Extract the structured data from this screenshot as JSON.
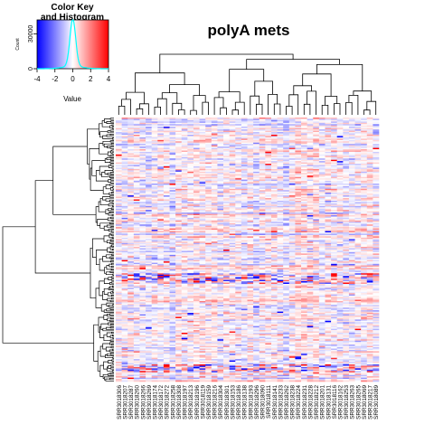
{
  "chart_data": {
    "type": "heatmap",
    "title": "polyA mets",
    "color_key": {
      "title_line1": "Color Key",
      "title_line2": "and Histogram",
      "value_label": "Value",
      "count_label": "Count",
      "ticks": [
        "-4",
        "-2",
        "0",
        "2",
        "4"
      ],
      "tick_values": [
        -4,
        -2,
        0,
        2,
        4
      ],
      "count_ticks": [
        "0",
        "30000"
      ],
      "count_tick_values": [
        0,
        30000
      ],
      "count_max": 42000,
      "range": [
        -4,
        4
      ],
      "colors": {
        "low": "#0000ff",
        "mid": "#ffffff",
        "high": "#ff0000",
        "histogram": "#00ffff"
      }
    },
    "xlabel": "",
    "ylabel": "",
    "columns": [
      "SRR3018306",
      "SRR3018207",
      "SRR3018287",
      "SRR3018260",
      "SRR3018266",
      "SRR3018269",
      "SRR3018174",
      "SRR3018172",
      "SRR3018272",
      "SRR3018258",
      "SRR3018308",
      "SRR3018197",
      "SRR3018213",
      "SRR3018196",
      "SRR3018119",
      "SRR3018159",
      "SRR3018216",
      "SRR3018304",
      "SRR3018301",
      "SRR3018153",
      "SRR3018186",
      "SRR3018138",
      "SRR3018193",
      "SRR3018296",
      "SRR3018090",
      "SRR3018111",
      "SRR3018141",
      "SRR3018233",
      "SRR3018262",
      "SRR3018238",
      "SRR3018224",
      "SRR3018231",
      "SRR3018228",
      "SRR3018212",
      "SRR3018201",
      "SRR3018131",
      "SRR3018116",
      "SRR3018162",
      "SRR3018253",
      "SRR3018263",
      "SRR3018265",
      "SRR3018069",
      "SRR3018217",
      "SRR3018089"
    ],
    "row_count": 200,
    "grid": false,
    "legend_position": "top-left"
  }
}
